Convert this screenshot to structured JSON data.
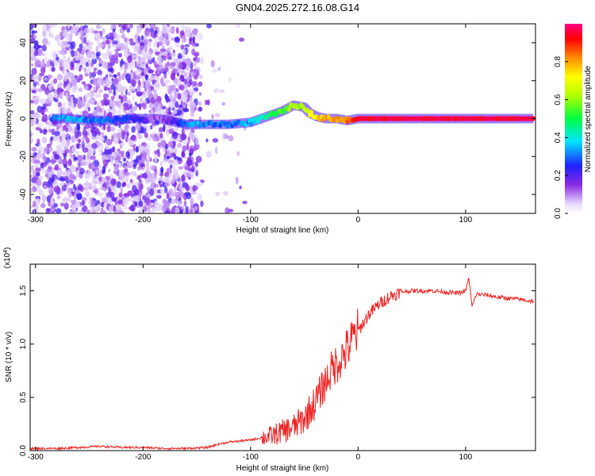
{
  "figure": {
    "title": "GN04.2025.272.16.08.G14"
  },
  "chart_data": [
    {
      "type": "heatmap",
      "xlabel": "Height of straight line (km)",
      "ylabel": "Frequency (Hz)",
      "xlim": [
        -305,
        165
      ],
      "ylim": [
        -50,
        50
      ],
      "xticks": [
        -300,
        -200,
        -100,
        0,
        100
      ],
      "yticks": [
        -40,
        -20,
        0,
        20,
        40
      ],
      "ridge": {
        "x": [
          -285,
          -270,
          -250,
          -230,
          -210,
          -185,
          -160,
          -150,
          -140,
          -120,
          -100,
          -85,
          -70,
          -60,
          -50,
          -45,
          -38,
          -30,
          -20,
          -10,
          0,
          50,
          100,
          163
        ],
        "y": [
          0,
          0,
          -1,
          -1,
          0,
          0,
          -3,
          -3,
          -3,
          -3,
          -2,
          1,
          4,
          7,
          6,
          3,
          1,
          0,
          0,
          -1,
          0,
          0,
          0,
          0
        ],
        "amplitude": [
          0.3,
          0.35,
          0.3,
          0.3,
          0.25,
          0.1,
          0.3,
          0.35,
          0.3,
          0.3,
          0.35,
          0.45,
          0.55,
          0.6,
          0.6,
          0.7,
          0.75,
          0.8,
          0.8,
          0.85,
          0.95,
          0.98,
          0.98,
          0.98
        ]
      },
      "colorbar": {
        "label": "Normalized spectral amplitude",
        "ticks": [
          0.0,
          0.2,
          0.4,
          0.6,
          0.8
        ],
        "range": [
          0,
          1
        ]
      }
    },
    {
      "type": "line",
      "xlabel": "Height of straight line (km)",
      "ylabel": "SNR (10 * v/v)",
      "multiplier": "(x10",
      "multiplier_exp": "4",
      "multiplier_close": ")",
      "xlim": [
        -305,
        165
      ],
      "ylim": [
        0,
        1.75
      ],
      "xticks": [
        -300,
        -200,
        -100,
        0,
        100
      ],
      "yticks": [
        "0.0",
        "0.5",
        "1.0",
        "1.5"
      ],
      "series": [
        {
          "color": "#ee2222",
          "x": [
            -305,
            -280,
            -260,
            -240,
            -220,
            -200,
            -180,
            -160,
            -140,
            -130,
            -120,
            -110,
            -100,
            -90,
            -80,
            -70,
            -60,
            -50,
            -45,
            -40,
            -35,
            -30,
            -25,
            -20,
            -15,
            -10,
            -5,
            0,
            5,
            10,
            20,
            30,
            40,
            50,
            60,
            70,
            80,
            90,
            95,
            100,
            103,
            106,
            110,
            120,
            130,
            140,
            150,
            163
          ],
          "y": [
            0.02,
            0.02,
            0.03,
            0.04,
            0.03,
            0.03,
            0.02,
            0.02,
            0.03,
            0.06,
            0.08,
            0.09,
            0.1,
            0.12,
            0.14,
            0.18,
            0.22,
            0.3,
            0.38,
            0.45,
            0.55,
            0.65,
            0.75,
            0.82,
            0.88,
            0.95,
            1.05,
            1.12,
            1.2,
            1.28,
            1.38,
            1.45,
            1.49,
            1.5,
            1.5,
            1.5,
            1.49,
            1.48,
            1.48,
            1.5,
            1.62,
            1.35,
            1.47,
            1.46,
            1.44,
            1.43,
            1.42,
            1.4
          ]
        }
      ]
    }
  ]
}
